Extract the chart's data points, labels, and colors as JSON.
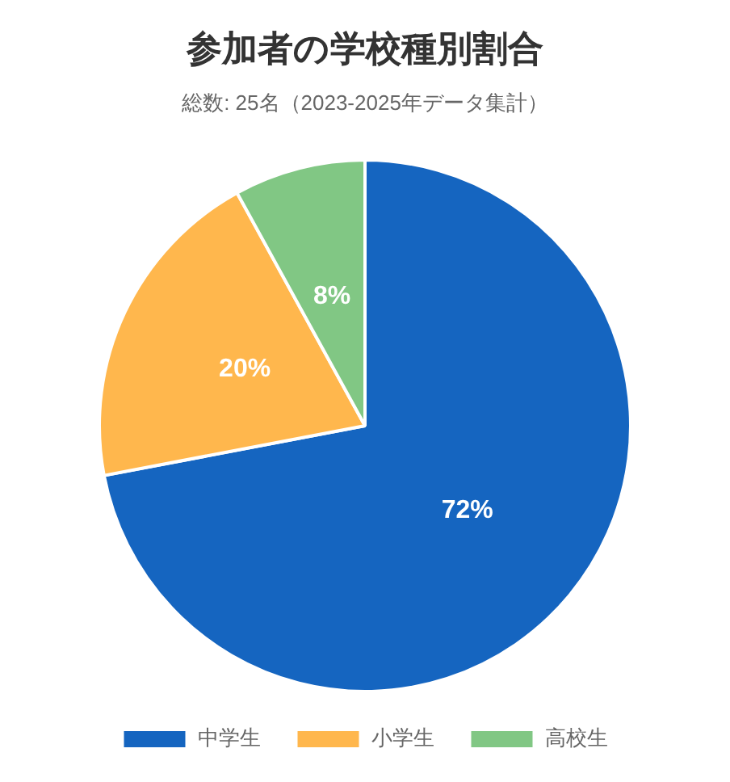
{
  "chart_data": {
    "type": "pie",
    "title": "参加者の学校種別割合",
    "subtitle": "総数: 25名（2023-2025年データ集計）",
    "categories": [
      "中学生",
      "小学生",
      "高校生"
    ],
    "values": [
      72,
      20,
      8
    ],
    "colors": [
      "#1565c0",
      "#ffb74d",
      "#81c784"
    ],
    "value_labels": [
      "72%",
      "20%",
      "8%"
    ],
    "legend": "bottom"
  }
}
